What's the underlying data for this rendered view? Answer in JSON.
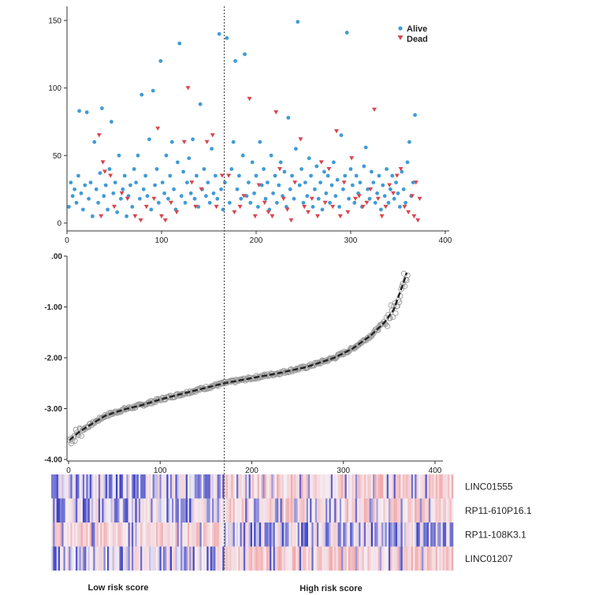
{
  "chart_data": [
    {
      "type": "scatter",
      "panel": "survival-status",
      "xlim": [
        0,
        400
      ],
      "ylim": [
        0,
        150
      ],
      "xticks": [
        0,
        100,
        200,
        300,
        400
      ],
      "yticks": [
        0,
        50,
        100,
        150
      ],
      "cutoff_x": 170,
      "legend_position": "top-right",
      "legend": [
        "Alive",
        "Dead"
      ],
      "colors": {
        "Alive": "#3f9bd6",
        "Dead": "#d9464e"
      },
      "series": [
        {
          "name": "Alive",
          "marker": "circle",
          "points": [
            [
              2,
              12
            ],
            [
              4,
              30
            ],
            [
              6,
              20
            ],
            [
              8,
              25
            ],
            [
              10,
              15
            ],
            [
              12,
              35
            ],
            [
              13,
              83
            ],
            [
              15,
              22
            ],
            [
              17,
              10
            ],
            [
              19,
              28
            ],
            [
              21,
              82
            ],
            [
              23,
              18
            ],
            [
              25,
              30
            ],
            [
              27,
              5
            ],
            [
              29,
              60
            ],
            [
              31,
              25
            ],
            [
              33,
              15
            ],
            [
              35,
              37
            ],
            [
              37,
              85
            ],
            [
              39,
              20
            ],
            [
              41,
              28
            ],
            [
              43,
              10
            ],
            [
              45,
              40
            ],
            [
              47,
              75
            ],
            [
              49,
              22
            ],
            [
              51,
              30
            ],
            [
              53,
              8
            ],
            [
              55,
              50
            ],
            [
              57,
              18
            ],
            [
              59,
              25
            ],
            [
              61,
              35
            ],
            [
              63,
              5
            ],
            [
              65,
              20
            ],
            [
              67,
              28
            ],
            [
              69,
              12
            ],
            [
              71,
              40
            ],
            [
              73,
              30
            ],
            [
              75,
              50
            ],
            [
              77,
              18
            ],
            [
              79,
              95
            ],
            [
              81,
              25
            ],
            [
              83,
              35
            ],
            [
              85,
              20
            ],
            [
              87,
              62
            ],
            [
              89,
              10
            ],
            [
              91,
              98
            ],
            [
              93,
              28
            ],
            [
              95,
              40
            ],
            [
              97,
              15
            ],
            [
              99,
              120
            ],
            [
              101,
              30
            ],
            [
              103,
              22
            ],
            [
              105,
              50
            ],
            [
              107,
              18
            ],
            [
              109,
              35
            ],
            [
              111,
              60
            ],
            [
              113,
              25
            ],
            [
              115,
              10
            ],
            [
              117,
              45
            ],
            [
              119,
              133
            ],
            [
              121,
              20
            ],
            [
              123,
              38
            ],
            [
              125,
              15
            ],
            [
              127,
              30
            ],
            [
              129,
              48
            ],
            [
              131,
              22
            ],
            [
              133,
              62
            ],
            [
              135,
              18
            ],
            [
              137,
              35
            ],
            [
              139,
              12
            ],
            [
              141,
              88
            ],
            [
              143,
              25
            ],
            [
              145,
              40
            ],
            [
              147,
              20
            ],
            [
              149,
              30
            ],
            [
              151,
              15
            ],
            [
              153,
              55
            ],
            [
              155,
              22
            ],
            [
              157,
              35
            ],
            [
              159,
              18
            ],
            [
              161,
              140
            ],
            [
              163,
              25
            ],
            [
              165,
              10
            ],
            [
              167,
              30
            ],
            [
              169,
              137
            ],
            [
              172,
              15
            ],
            [
              174,
              40
            ],
            [
              176,
              60
            ],
            [
              178,
              120
            ],
            [
              180,
              25
            ],
            [
              182,
              35
            ],
            [
              184,
              18
            ],
            [
              186,
              50
            ],
            [
              188,
              125
            ],
            [
              190,
              20
            ],
            [
              192,
              30
            ],
            [
              194,
              15
            ],
            [
              196,
              45
            ],
            [
              198,
              22
            ],
            [
              200,
              35
            ],
            [
              202,
              12
            ],
            [
              204,
              60
            ],
            [
              206,
              28
            ],
            [
              208,
              40
            ],
            [
              210,
              18
            ],
            [
              212,
              30
            ],
            [
              214,
              10
            ],
            [
              216,
              50
            ],
            [
              218,
              22
            ],
            [
              220,
              35
            ],
            [
              222,
              15
            ],
            [
              224,
              28
            ],
            [
              226,
              45
            ],
            [
              228,
              20
            ],
            [
              230,
              38
            ],
            [
              232,
              12
            ],
            [
              234,
              78
            ],
            [
              236,
              25
            ],
            [
              238,
              35
            ],
            [
              240,
              18
            ],
            [
              242,
              55
            ],
            [
              244,
              149
            ],
            [
              246,
              28
            ],
            [
              248,
              40
            ],
            [
              250,
              15
            ],
            [
              252,
              30
            ],
            [
              254,
              20
            ],
            [
              256,
              48
            ],
            [
              258,
              35
            ],
            [
              260,
              12
            ],
            [
              262,
              25
            ],
            [
              264,
              42
            ],
            [
              266,
              18
            ],
            [
              268,
              30
            ],
            [
              270,
              10
            ],
            [
              272,
              38
            ],
            [
              274,
              22
            ],
            [
              276,
              35
            ],
            [
              278,
              15
            ],
            [
              280,
              28
            ],
            [
              282,
              45
            ],
            [
              284,
              20
            ],
            [
              286,
              32
            ],
            [
              288,
              12
            ],
            [
              290,
              65
            ],
            [
              292,
              25
            ],
            [
              294,
              35
            ],
            [
              296,
              141
            ],
            [
              298,
              18
            ],
            [
              300,
              40
            ],
            [
              302,
              28
            ],
            [
              304,
              15
            ],
            [
              306,
              35
            ],
            [
              308,
              22
            ],
            [
              310,
              30
            ],
            [
              312,
              12
            ],
            [
              314,
              42
            ],
            [
              316,
              56
            ],
            [
              318,
              25
            ],
            [
              320,
              18
            ],
            [
              322,
              38
            ],
            [
              324,
              30
            ],
            [
              326,
              15
            ],
            [
              328,
              22
            ],
            [
              330,
              35
            ],
            [
              332,
              10
            ],
            [
              334,
              28
            ],
            [
              336,
              20
            ],
            [
              338,
              40
            ],
            [
              340,
              15
            ],
            [
              342,
              25
            ],
            [
              344,
              35
            ],
            [
              346,
              18
            ],
            [
              348,
              30
            ],
            [
              350,
              22
            ],
            [
              352,
              12
            ],
            [
              354,
              38
            ],
            [
              356,
              25
            ],
            [
              358,
              15
            ],
            [
              360,
              45
            ],
            [
              362,
              60
            ],
            [
              364,
              20
            ],
            [
              366,
              30
            ],
            [
              368,
              80
            ]
          ]
        },
        {
          "name": "Dead",
          "marker": "triangle-down",
          "points": [
            [
              34,
              65
            ],
            [
              36,
              5
            ],
            [
              38,
              45
            ],
            [
              40,
              38
            ],
            [
              46,
              35
            ],
            [
              50,
              12
            ],
            [
              58,
              22
            ],
            [
              64,
              18
            ],
            [
              72,
              5
            ],
            [
              78,
              2
            ],
            [
              84,
              12
            ],
            [
              92,
              18
            ],
            [
              96,
              70
            ],
            [
              100,
              5
            ],
            [
              104,
              2
            ],
            [
              110,
              15
            ],
            [
              116,
              8
            ],
            [
              124,
              60
            ],
            [
              128,
              100
            ],
            [
              132,
              30
            ],
            [
              136,
              12
            ],
            [
              142,
              25
            ],
            [
              148,
              60
            ],
            [
              154,
              65
            ],
            [
              158,
              12
            ],
            [
              164,
              35
            ],
            [
              171,
              35
            ],
            [
              177,
              8
            ],
            [
              183,
              12
            ],
            [
              187,
              20
            ],
            [
              193,
              92
            ],
            [
              199,
              5
            ],
            [
              203,
              28
            ],
            [
              209,
              15
            ],
            [
              213,
              8
            ],
            [
              217,
              5
            ],
            [
              221,
              82
            ],
            [
              225,
              40
            ],
            [
              229,
              18
            ],
            [
              233,
              10
            ],
            [
              237,
              2
            ],
            [
              241,
              30
            ],
            [
              247,
              62
            ],
            [
              251,
              12
            ],
            [
              255,
              8
            ],
            [
              259,
              18
            ],
            [
              265,
              5
            ],
            [
              269,
              45
            ],
            [
              273,
              15
            ],
            [
              277,
              40
            ],
            [
              281,
              12
            ],
            [
              285,
              68
            ],
            [
              289,
              5
            ],
            [
              293,
              30
            ],
            [
              297,
              8
            ],
            [
              301,
              48
            ],
            [
              305,
              18
            ],
            [
              309,
              20
            ],
            [
              313,
              12
            ],
            [
              317,
              15
            ],
            [
              321,
              25
            ],
            [
              325,
              84
            ],
            [
              329,
              18
            ],
            [
              333,
              5
            ],
            [
              337,
              12
            ],
            [
              341,
              28
            ],
            [
              345,
              22
            ],
            [
              349,
              35
            ],
            [
              353,
              40
            ],
            [
              357,
              12
            ],
            [
              361,
              8
            ],
            [
              365,
              20
            ],
            [
              367,
              5
            ],
            [
              369,
              30
            ],
            [
              371,
              2
            ],
            [
              373,
              18
            ]
          ]
        }
      ]
    },
    {
      "type": "scatter",
      "panel": "risk-score-curve",
      "xlim": [
        0,
        400
      ],
      "ylim": [
        -4.0,
        0.0
      ],
      "xticks": [
        0,
        100,
        200,
        300,
        400
      ],
      "yticks": [
        0.0,
        -1.0,
        -2.0,
        -3.0,
        -4.0
      ],
      "ytick_labels": [
        ".00",
        "-1.00",
        "-2.00",
        "-3.00",
        "-4.00"
      ],
      "n_patients": 370,
      "cutoff_x": 170,
      "curve_anchors": [
        [
          1,
          -3.62
        ],
        [
          10,
          -3.48
        ],
        [
          20,
          -3.36
        ],
        [
          40,
          -3.14
        ],
        [
          60,
          -3.02
        ],
        [
          80,
          -2.93
        ],
        [
          100,
          -2.82
        ],
        [
          130,
          -2.68
        ],
        [
          170,
          -2.5
        ],
        [
          200,
          -2.4
        ],
        [
          230,
          -2.3
        ],
        [
          260,
          -2.18
        ],
        [
          290,
          -2.0
        ],
        [
          310,
          -1.82
        ],
        [
          330,
          -1.56
        ],
        [
          345,
          -1.3
        ],
        [
          355,
          -1.05
        ],
        [
          362,
          -0.7
        ],
        [
          368,
          -0.4
        ],
        [
          371,
          -0.18
        ]
      ],
      "markers": "open-circle with fitted dashed line"
    },
    {
      "type": "heatmap",
      "panel": "expression-heatmap",
      "rows": [
        "LINC01555",
        "RP11-610P16.1",
        "RP11-108K3.1",
        "LINC01207"
      ],
      "row_bias_low_risk": [
        "blue",
        "blue",
        "red",
        "blue"
      ],
      "row_bias_high_risk": [
        "red",
        "red",
        "blue",
        "red"
      ],
      "low_color": "#3a3fc4",
      "high_color": "#f08a8a",
      "cutoff_x": 170,
      "group_labels": [
        "Low risk score",
        "High risk score"
      ]
    }
  ]
}
